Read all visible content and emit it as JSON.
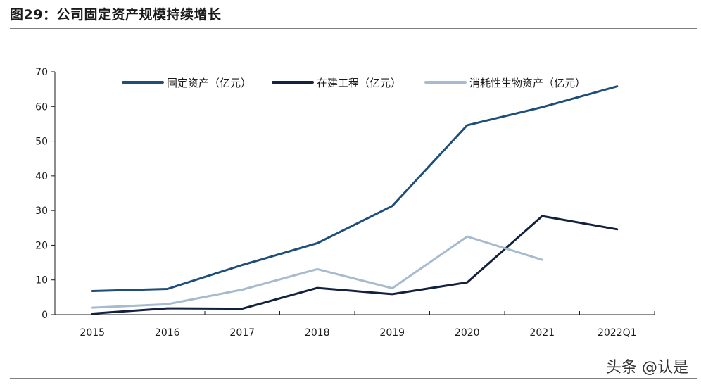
{
  "header": {
    "title": "图29：公司固定资产规模持续增长"
  },
  "watermark": "头条 @认是",
  "chart_data": {
    "type": "line",
    "title": "",
    "xlabel": "",
    "ylabel": "",
    "categories": [
      "2015",
      "2016",
      "2017",
      "2018",
      "2019",
      "2020",
      "2021",
      "2022Q1"
    ],
    "ylim": [
      0,
      70
    ],
    "yticks": [
      0,
      10,
      20,
      30,
      40,
      50,
      60,
      70
    ],
    "grid": false,
    "legend_position": "top",
    "series": [
      {
        "name": "固定资产（亿元）",
        "color": "#1f4e79",
        "values": [
          6.8,
          7.4,
          14.3,
          20.6,
          31.3,
          54.6,
          59.8,
          65.8
        ]
      },
      {
        "name": "在建工程（亿元）",
        "color": "#14213d",
        "values": [
          0.3,
          1.8,
          1.7,
          7.7,
          5.9,
          9.3,
          28.4,
          24.6
        ]
      },
      {
        "name": "消耗性生物资产（亿元）",
        "color": "#a7bbcf",
        "values": [
          2.0,
          3.0,
          7.2,
          13.1,
          7.6,
          22.5,
          15.8,
          null
        ]
      }
    ]
  }
}
